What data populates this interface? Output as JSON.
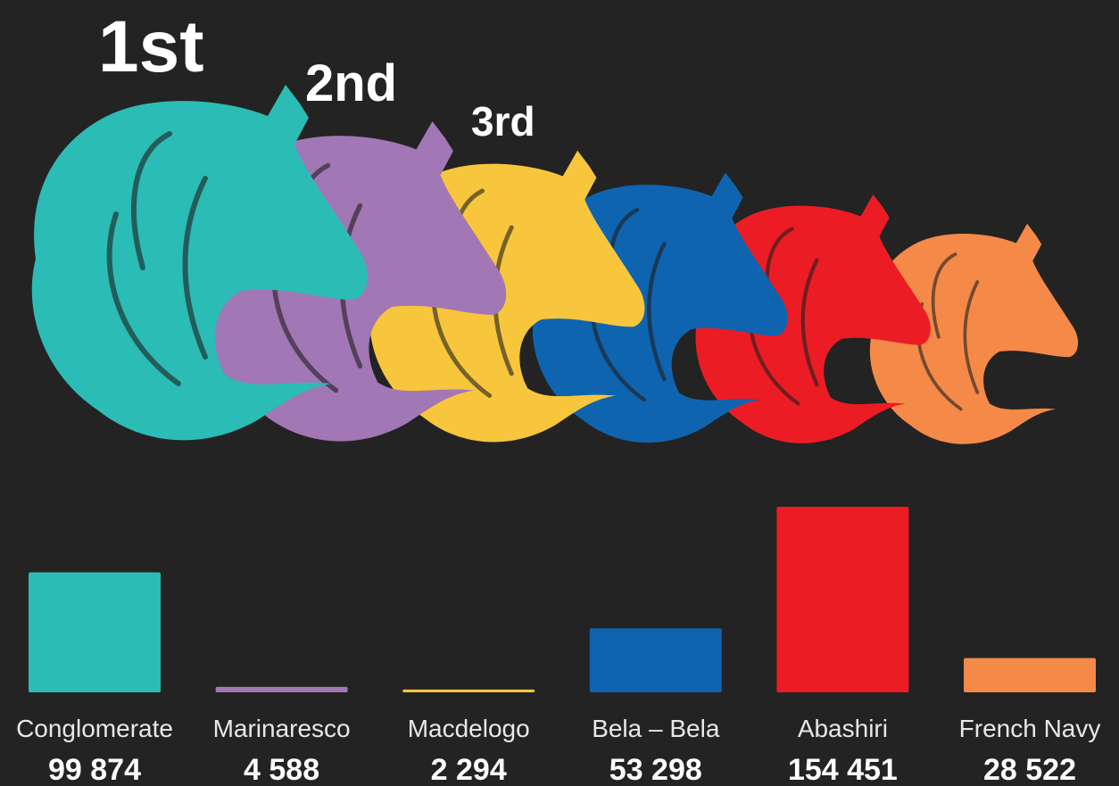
{
  "chart_data": {
    "type": "bar",
    "annotations": [
      "1st",
      "2nd",
      "3rd"
    ],
    "categories": [
      "Conglomerate",
      "Marinaresco",
      "Macdelogo",
      "Bela – Bela",
      "Abashiri",
      "French Navy"
    ],
    "values": [
      99874,
      4588,
      2294,
      53298,
      154451,
      28522
    ],
    "value_labels": [
      "99 874",
      "4 588",
      "2 294",
      "53 298",
      "154 451",
      "28 522"
    ],
    "colors": [
      "#2bbcb5",
      "#a277b5",
      "#f7c63c",
      "#0f64b0",
      "#ec1c24",
      "#f58a48"
    ]
  }
}
